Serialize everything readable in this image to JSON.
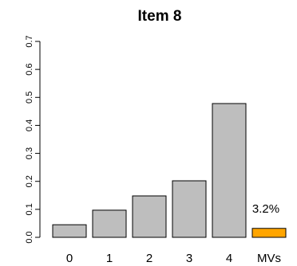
{
  "chart_data": {
    "type": "bar",
    "title": "Item 8",
    "xlabel": "",
    "ylabel": "",
    "categories": [
      "0",
      "1",
      "2",
      "3",
      "4",
      "MVs"
    ],
    "values": [
      0.045,
      0.097,
      0.148,
      0.202,
      0.478,
      0.032
    ],
    "bar_colors": [
      "#bebebe",
      "#bebebe",
      "#bebebe",
      "#bebebe",
      "#bebebe",
      "#ffa500"
    ],
    "ylim": [
      0,
      0.7
    ],
    "yticks": [
      0.0,
      0.1,
      0.2,
      0.3,
      0.4,
      0.5,
      0.6,
      0.7
    ],
    "ytick_labels": [
      "0.0",
      "0.1",
      "0.2",
      "0.3",
      "0.4",
      "0.5",
      "0.6",
      "0.7"
    ],
    "annotations": [
      {
        "category": "MVs",
        "text": "3.2%"
      }
    ],
    "grid": false,
    "legend": "none"
  }
}
